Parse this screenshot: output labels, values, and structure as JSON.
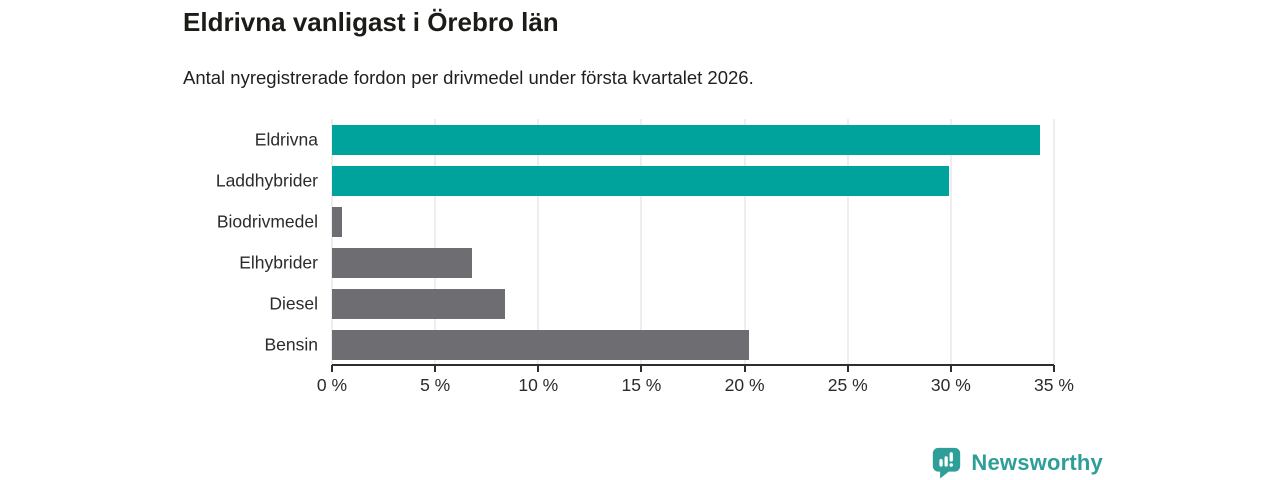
{
  "header": {
    "title": "Eldrivna vanligast i Örebro län",
    "subtitle": "Antal nyregistrerade fordon per drivmedel under första kvartalet 2026."
  },
  "chart_data": {
    "type": "bar",
    "orientation": "horizontal",
    "title": "Eldrivna vanligast i Örebro län",
    "xlabel": "",
    "ylabel": "",
    "categories": [
      "Eldrivna",
      "Laddhybrider",
      "Biodrivmedel",
      "Elhybrider",
      "Diesel",
      "Bensin"
    ],
    "values": [
      34.3,
      29.9,
      0.5,
      6.8,
      8.4,
      20.2
    ],
    "unit": "%",
    "bar_colors": [
      "#00A39B",
      "#00A39B",
      "#6E6D71",
      "#6E6D71",
      "#6E6D71",
      "#6E6D71"
    ],
    "xlim": [
      0,
      35
    ],
    "x_ticks": [
      0,
      5,
      10,
      15,
      20,
      25,
      30,
      35
    ],
    "x_tick_labels": [
      "0 %",
      "5 %",
      "10 %",
      "15 %",
      "20 %",
      "25 %",
      "30 %",
      "35 %"
    ],
    "grid": "vertical",
    "legend_position": "none"
  },
  "branding": {
    "logo_text": "Newsworthy",
    "logo_icon": "newsworthy-bar-chart-bubble-icon",
    "logo_color": "#2E9E99"
  },
  "colors": {
    "accent_teal": "#00A39B",
    "bar_gray": "#6E6D71",
    "gridline": "#DCDCDC",
    "axis": "#2E2E2E",
    "title_text": "#1B1B18",
    "label_text": "#2B2B2B"
  }
}
